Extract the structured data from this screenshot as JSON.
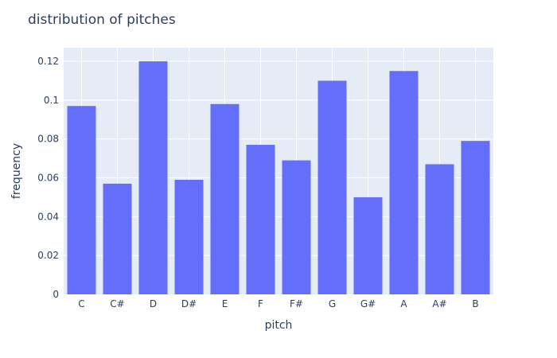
{
  "chart_data": {
    "type": "bar",
    "title": "distribution of pitches",
    "xlabel": "pitch",
    "ylabel": "frequency",
    "categories": [
      "C",
      "C#",
      "D",
      "D#",
      "E",
      "F",
      "F#",
      "G",
      "G#",
      "A",
      "A#",
      "B"
    ],
    "values": [
      0.097,
      0.057,
      0.12,
      0.059,
      0.098,
      0.077,
      0.069,
      0.11,
      0.05,
      0.115,
      0.067,
      0.079
    ],
    "ylim": [
      0,
      0.127
    ],
    "yticks": [
      0,
      0.02,
      0.04,
      0.06,
      0.08,
      0.1,
      0.12
    ],
    "ytick_labels": [
      "0",
      "0.02",
      "0.04",
      "0.06",
      "0.08",
      "0.1",
      "0.12"
    ],
    "grid": true,
    "colors": {
      "bar": "#636efa",
      "plot_bg": "#e5ecf6",
      "grid": "#ffffff",
      "text": "#2a3f5f"
    }
  }
}
